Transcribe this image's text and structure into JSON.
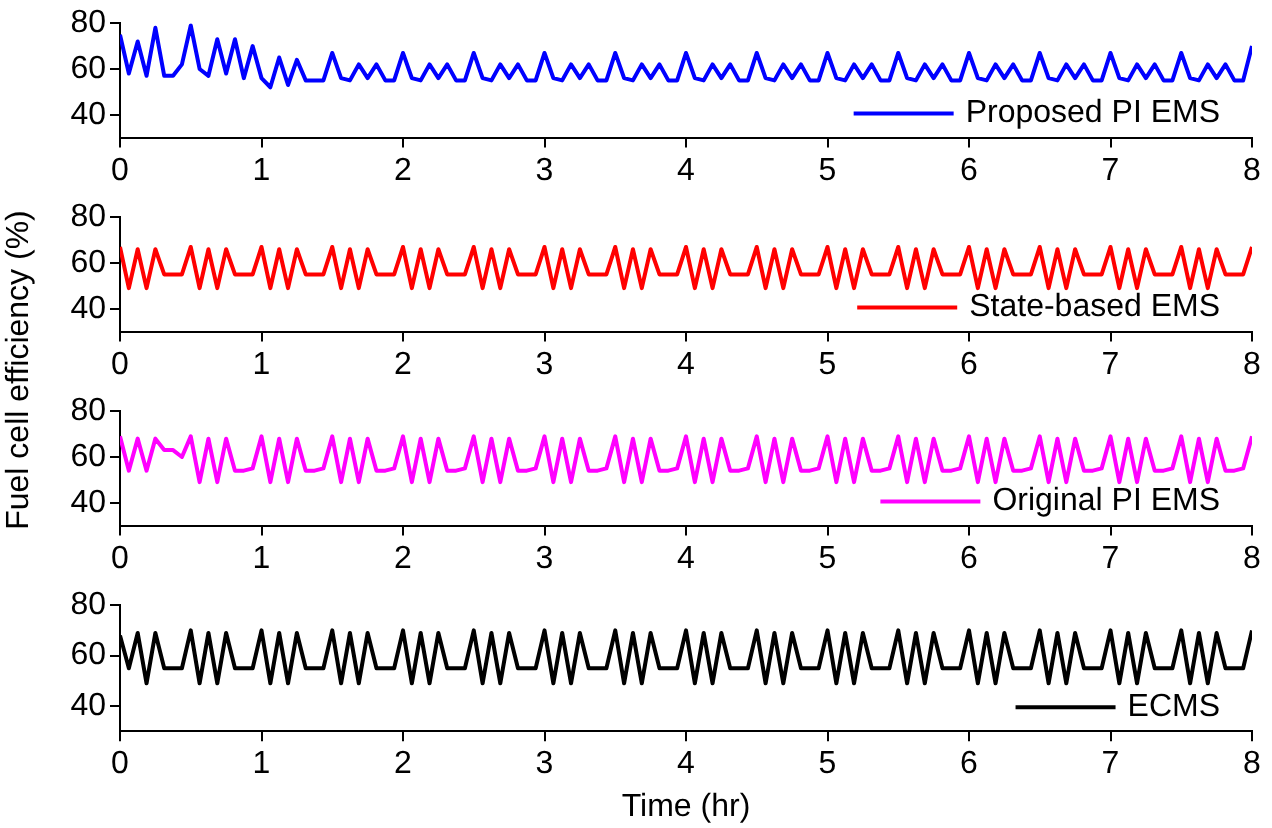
{
  "chart_data": [
    {
      "type": "line",
      "x": [
        0,
        0.0625,
        0.125,
        0.1875,
        0.25,
        0.3125,
        0.375,
        0.4375,
        0.5,
        0.5625,
        0.625,
        0.6875,
        0.75,
        0.8125,
        0.875,
        0.9375,
        1,
        1.0625,
        1.125,
        1.1875,
        1.25,
        1.3125,
        1.375,
        1.4375,
        1.5,
        1.5625,
        1.625,
        1.6875,
        1.75,
        1.8125,
        1.875,
        1.9375,
        2,
        2.0625,
        2.125,
        2.1875,
        2.25,
        2.3125,
        2.375,
        2.4375,
        2.5,
        2.5625,
        2.625,
        2.6875,
        2.75,
        2.8125,
        2.875,
        2.9375,
        3,
        3.0625,
        3.125,
        3.1875,
        3.25,
        3.3125,
        3.375,
        3.4375,
        3.5,
        3.5625,
        3.625,
        3.6875,
        3.75,
        3.8125,
        3.875,
        3.9375,
        4,
        4.0625,
        4.125,
        4.1875,
        4.25,
        4.3125,
        4.375,
        4.4375,
        4.5,
        4.5625,
        4.625,
        4.6875,
        4.75,
        4.8125,
        4.875,
        4.9375,
        5,
        5.0625,
        5.125,
        5.1875,
        5.25,
        5.3125,
        5.375,
        5.4375,
        5.5,
        5.5625,
        5.625,
        5.6875,
        5.75,
        5.8125,
        5.875,
        5.9375,
        6,
        6.0625,
        6.125,
        6.1875,
        6.25,
        6.3125,
        6.375,
        6.4375,
        6.5,
        6.5625,
        6.625,
        6.6875,
        6.75,
        6.8125,
        6.875,
        6.9375,
        7,
        7.0625,
        7.125,
        7.1875,
        7.25,
        7.3125,
        7.375,
        7.4375,
        7.5,
        7.5625,
        7.625,
        7.6875,
        7.75,
        7.8125,
        7.875,
        7.9375,
        8
      ],
      "series": [
        {
          "name": "Proposed PI EMS",
          "color": "#0000ff",
          "values": [
            75,
            58,
            72,
            57,
            78,
            57,
            57,
            62,
            79,
            60,
            57,
            73,
            58,
            73,
            56,
            70,
            56,
            52,
            65,
            53,
            64,
            55,
            55,
            55,
            67,
            56,
            55,
            62,
            56,
            62,
            55,
            55,
            67,
            56,
            55,
            62,
            56,
            62,
            55,
            55,
            67,
            56,
            55,
            62,
            56,
            62,
            55,
            55,
            67,
            56,
            55,
            62,
            56,
            62,
            55,
            55,
            67,
            56,
            55,
            62,
            56,
            62,
            55,
            55,
            67,
            56,
            55,
            62,
            56,
            62,
            55,
            55,
            67,
            56,
            55,
            62,
            56,
            62,
            55,
            55,
            67,
            56,
            55,
            62,
            56,
            62,
            55,
            55,
            67,
            56,
            55,
            62,
            56,
            62,
            55,
            55,
            67,
            56,
            55,
            62,
            56,
            62,
            55,
            55,
            67,
            56,
            55,
            62,
            56,
            62,
            55,
            55,
            67,
            56,
            55,
            62,
            56,
            62,
            55,
            55,
            67,
            56,
            55,
            62,
            56,
            62,
            55,
            55,
            70
          ]
        }
      ],
      "xlim": [
        0,
        8
      ],
      "xticks": [
        0,
        1,
        2,
        3,
        4,
        5,
        6,
        7,
        8
      ],
      "ylim": [
        30,
        80
      ],
      "yticks": [
        40,
        60,
        80
      ],
      "grid": false,
      "legend": "bottom right",
      "marker": "none"
    },
    {
      "type": "line",
      "ylabel": "Fuel cell efficiency (%)",
      "x": [
        0,
        0.0625,
        0.125,
        0.1875,
        0.25,
        0.3125,
        0.375,
        0.4375,
        0.5,
        0.5625,
        0.625,
        0.6875,
        0.75,
        0.8125,
        0.875,
        0.9375,
        1,
        1.0625,
        1.125,
        1.1875,
        1.25,
        1.3125,
        1.375,
        1.4375,
        1.5,
        1.5625,
        1.625,
        1.6875,
        1.75,
        1.8125,
        1.875,
        1.9375,
        2,
        2.0625,
        2.125,
        2.1875,
        2.25,
        2.3125,
        2.375,
        2.4375,
        2.5,
        2.5625,
        2.625,
        2.6875,
        2.75,
        2.8125,
        2.875,
        2.9375,
        3,
        3.0625,
        3.125,
        3.1875,
        3.25,
        3.3125,
        3.375,
        3.4375,
        3.5,
        3.5625,
        3.625,
        3.6875,
        3.75,
        3.8125,
        3.875,
        3.9375,
        4,
        4.0625,
        4.125,
        4.1875,
        4.25,
        4.3125,
        4.375,
        4.4375,
        4.5,
        4.5625,
        4.625,
        4.6875,
        4.75,
        4.8125,
        4.875,
        4.9375,
        5,
        5.0625,
        5.125,
        5.1875,
        5.25,
        5.3125,
        5.375,
        5.4375,
        5.5,
        5.5625,
        5.625,
        5.6875,
        5.75,
        5.8125,
        5.875,
        5.9375,
        6,
        6.0625,
        6.125,
        6.1875,
        6.25,
        6.3125,
        6.375,
        6.4375,
        6.5,
        6.5625,
        6.625,
        6.6875,
        6.75,
        6.8125,
        6.875,
        6.9375,
        7,
        7.0625,
        7.125,
        7.1875,
        7.25,
        7.3125,
        7.375,
        7.4375,
        7.5,
        7.5625,
        7.625,
        7.6875,
        7.75,
        7.8125,
        7.875,
        7.9375,
        8
      ],
      "series": [
        {
          "name": "State-based EMS",
          "color": "#ff0000",
          "values": [
            67,
            49,
            66,
            49,
            66,
            55,
            55,
            55,
            67,
            49,
            66,
            49,
            66,
            55,
            55,
            55,
            67,
            49,
            66,
            49,
            66,
            55,
            55,
            55,
            67,
            49,
            66,
            49,
            66,
            55,
            55,
            55,
            67,
            49,
            66,
            49,
            66,
            55,
            55,
            55,
            67,
            49,
            66,
            49,
            66,
            55,
            55,
            55,
            67,
            49,
            66,
            49,
            66,
            55,
            55,
            55,
            67,
            49,
            66,
            49,
            66,
            55,
            55,
            55,
            67,
            49,
            66,
            49,
            66,
            55,
            55,
            55,
            67,
            49,
            66,
            49,
            66,
            55,
            55,
            55,
            67,
            49,
            66,
            49,
            66,
            55,
            55,
            55,
            67,
            49,
            66,
            49,
            66,
            55,
            55,
            55,
            67,
            49,
            66,
            49,
            66,
            55,
            55,
            55,
            67,
            49,
            66,
            49,
            66,
            55,
            55,
            55,
            67,
            49,
            66,
            49,
            66,
            55,
            55,
            55,
            67,
            49,
            66,
            49,
            66,
            55,
            55,
            55,
            67
          ]
        }
      ],
      "xlim": [
        0,
        8
      ],
      "xticks": [
        0,
        1,
        2,
        3,
        4,
        5,
        6,
        7,
        8
      ],
      "ylim": [
        30,
        80
      ],
      "yticks": [
        40,
        60,
        80
      ],
      "grid": false,
      "legend": "bottom right",
      "marker": "none"
    },
    {
      "type": "line",
      "x": [
        0,
        0.0625,
        0.125,
        0.1875,
        0.25,
        0.3125,
        0.375,
        0.4375,
        0.5,
        0.5625,
        0.625,
        0.6875,
        0.75,
        0.8125,
        0.875,
        0.9375,
        1,
        1.0625,
        1.125,
        1.1875,
        1.25,
        1.3125,
        1.375,
        1.4375,
        1.5,
        1.5625,
        1.625,
        1.6875,
        1.75,
        1.8125,
        1.875,
        1.9375,
        2,
        2.0625,
        2.125,
        2.1875,
        2.25,
        2.3125,
        2.375,
        2.4375,
        2.5,
        2.5625,
        2.625,
        2.6875,
        2.75,
        2.8125,
        2.875,
        2.9375,
        3,
        3.0625,
        3.125,
        3.1875,
        3.25,
        3.3125,
        3.375,
        3.4375,
        3.5,
        3.5625,
        3.625,
        3.6875,
        3.75,
        3.8125,
        3.875,
        3.9375,
        4,
        4.0625,
        4.125,
        4.1875,
        4.25,
        4.3125,
        4.375,
        4.4375,
        4.5,
        4.5625,
        4.625,
        4.6875,
        4.75,
        4.8125,
        4.875,
        4.9375,
        5,
        5.0625,
        5.125,
        5.1875,
        5.25,
        5.3125,
        5.375,
        5.4375,
        5.5,
        5.5625,
        5.625,
        5.6875,
        5.75,
        5.8125,
        5.875,
        5.9375,
        6,
        6.0625,
        6.125,
        6.1875,
        6.25,
        6.3125,
        6.375,
        6.4375,
        6.5,
        6.5625,
        6.625,
        6.6875,
        6.75,
        6.8125,
        6.875,
        6.9375,
        7,
        7.0625,
        7.125,
        7.1875,
        7.25,
        7.3125,
        7.375,
        7.4375,
        7.5,
        7.5625,
        7.625,
        7.6875,
        7.75,
        7.8125,
        7.875,
        7.9375,
        8
      ],
      "series": [
        {
          "name": "Original PI EMS",
          "color": "#ff00ff",
          "values": [
            69,
            54,
            68,
            54,
            68,
            63,
            63,
            60,
            69,
            49,
            68,
            49,
            68,
            54,
            54,
            55,
            69,
            49,
            68,
            49,
            68,
            54,
            54,
            55,
            69,
            49,
            68,
            49,
            68,
            54,
            54,
            55,
            69,
            49,
            68,
            49,
            68,
            54,
            54,
            55,
            69,
            49,
            68,
            49,
            68,
            54,
            54,
            55,
            69,
            49,
            68,
            49,
            68,
            54,
            54,
            55,
            69,
            49,
            68,
            49,
            68,
            54,
            54,
            55,
            69,
            49,
            68,
            49,
            68,
            54,
            54,
            55,
            69,
            49,
            68,
            49,
            68,
            54,
            54,
            55,
            69,
            49,
            68,
            49,
            68,
            54,
            54,
            55,
            69,
            49,
            68,
            49,
            68,
            54,
            54,
            55,
            69,
            49,
            68,
            49,
            68,
            54,
            54,
            55,
            69,
            49,
            68,
            49,
            68,
            54,
            54,
            55,
            69,
            49,
            68,
            49,
            68,
            54,
            54,
            55,
            69,
            49,
            68,
            49,
            68,
            54,
            54,
            55,
            69
          ]
        }
      ],
      "xlim": [
        0,
        8
      ],
      "xticks": [
        0,
        1,
        2,
        3,
        4,
        5,
        6,
        7,
        8
      ],
      "ylim": [
        30,
        80
      ],
      "yticks": [
        40,
        60,
        80
      ],
      "grid": false,
      "legend": "bottom right",
      "marker": "none"
    },
    {
      "type": "line",
      "xlabel": "Time (hr)",
      "x": [
        0,
        0.0625,
        0.125,
        0.1875,
        0.25,
        0.3125,
        0.375,
        0.4375,
        0.5,
        0.5625,
        0.625,
        0.6875,
        0.75,
        0.8125,
        0.875,
        0.9375,
        1,
        1.0625,
        1.125,
        1.1875,
        1.25,
        1.3125,
        1.375,
        1.4375,
        1.5,
        1.5625,
        1.625,
        1.6875,
        1.75,
        1.8125,
        1.875,
        1.9375,
        2,
        2.0625,
        2.125,
        2.1875,
        2.25,
        2.3125,
        2.375,
        2.4375,
        2.5,
        2.5625,
        2.625,
        2.6875,
        2.75,
        2.8125,
        2.875,
        2.9375,
        3,
        3.0625,
        3.125,
        3.1875,
        3.25,
        3.3125,
        3.375,
        3.4375,
        3.5,
        3.5625,
        3.625,
        3.6875,
        3.75,
        3.8125,
        3.875,
        3.9375,
        4,
        4.0625,
        4.125,
        4.1875,
        4.25,
        4.3125,
        4.375,
        4.4375,
        4.5,
        4.5625,
        4.625,
        4.6875,
        4.75,
        4.8125,
        4.875,
        4.9375,
        5,
        5.0625,
        5.125,
        5.1875,
        5.25,
        5.3125,
        5.375,
        5.4375,
        5.5,
        5.5625,
        5.625,
        5.6875,
        5.75,
        5.8125,
        5.875,
        5.9375,
        6,
        6.0625,
        6.125,
        6.1875,
        6.25,
        6.3125,
        6.375,
        6.4375,
        6.5,
        6.5625,
        6.625,
        6.6875,
        6.75,
        6.8125,
        6.875,
        6.9375,
        7,
        7.0625,
        7.125,
        7.1875,
        7.25,
        7.3125,
        7.375,
        7.4375,
        7.5,
        7.5625,
        7.625,
        7.6875,
        7.75,
        7.8125,
        7.875,
        7.9375,
        8
      ],
      "series": [
        {
          "name": "ECMS",
          "color": "#000000",
          "values": [
            68,
            55,
            69,
            49,
            69,
            55,
            55,
            55,
            70,
            49,
            69,
            49,
            69,
            55,
            55,
            55,
            70,
            49,
            69,
            49,
            69,
            55,
            55,
            55,
            70,
            49,
            69,
            49,
            69,
            55,
            55,
            55,
            70,
            49,
            69,
            49,
            69,
            55,
            55,
            55,
            70,
            49,
            69,
            49,
            69,
            55,
            55,
            55,
            70,
            49,
            69,
            49,
            69,
            55,
            55,
            55,
            70,
            49,
            69,
            49,
            69,
            55,
            55,
            55,
            70,
            49,
            69,
            49,
            69,
            55,
            55,
            55,
            70,
            49,
            69,
            49,
            69,
            55,
            55,
            55,
            70,
            49,
            69,
            49,
            69,
            55,
            55,
            55,
            70,
            49,
            69,
            49,
            69,
            55,
            55,
            55,
            70,
            49,
            69,
            49,
            69,
            55,
            55,
            55,
            70,
            49,
            69,
            49,
            69,
            55,
            55,
            55,
            70,
            49,
            69,
            49,
            69,
            55,
            55,
            55,
            70,
            49,
            69,
            49,
            69,
            55,
            55,
            55,
            70
          ]
        }
      ],
      "xlim": [
        0,
        8
      ],
      "xticks": [
        0,
        1,
        2,
        3,
        4,
        5,
        6,
        7,
        8
      ],
      "ylim": [
        30,
        80
      ],
      "yticks": [
        40,
        60,
        80
      ],
      "grid": false,
      "legend": "bottom right",
      "marker": "none"
    }
  ]
}
